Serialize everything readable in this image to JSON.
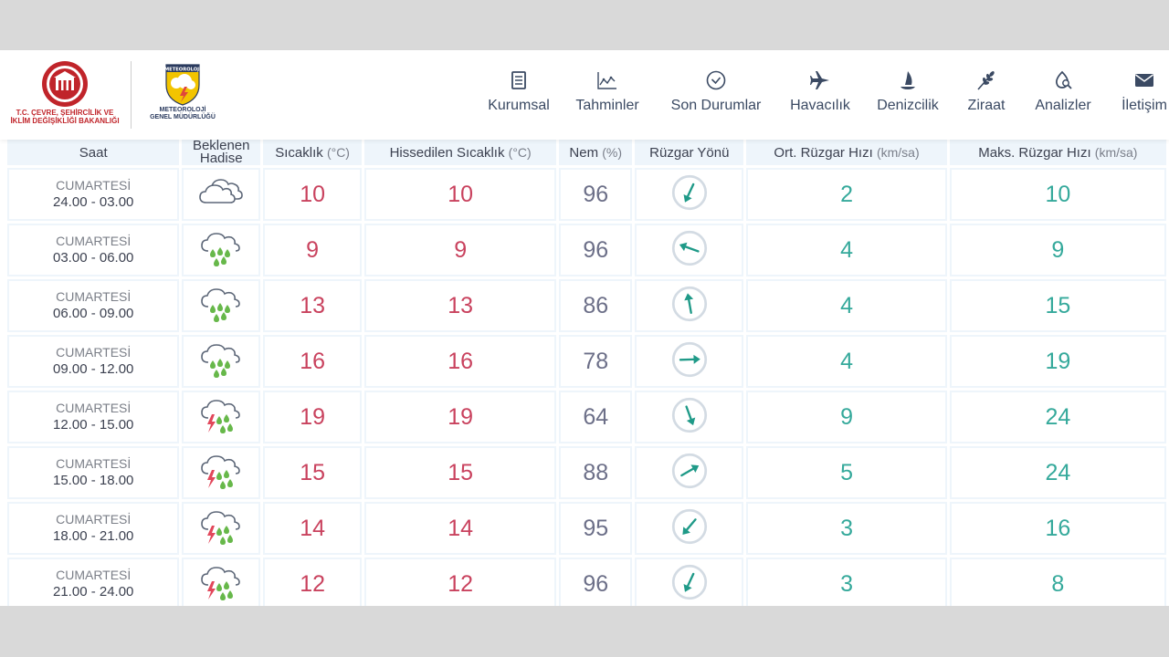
{
  "header": {
    "ministry_logo_line1": "T.C. ÇEVRE, ŞEHİRCİLİK VE",
    "ministry_logo_line2": "İKLİM DEĞİŞİKLİĞİ BAKANLIĞI",
    "mgm_logo_badge": "METEOROLOJİ",
    "mgm_logo_line1": "METEOROLOJİ",
    "mgm_logo_line2": "GENEL MÜDÜRLÜĞÜ"
  },
  "nav": [
    {
      "label": "Kurumsal",
      "icon": "document-icon"
    },
    {
      "label": "Tahminler",
      "icon": "chart-icon"
    },
    {
      "label": "Son Durumlar",
      "icon": "check-circle-icon"
    },
    {
      "label": "Havacılık",
      "icon": "airplane-icon"
    },
    {
      "label": "Denizcilik",
      "icon": "sailboat-icon"
    },
    {
      "label": "Ziraat",
      "icon": "wheat-icon"
    },
    {
      "label": "Analizler",
      "icon": "analysis-icon"
    },
    {
      "label": "İletişim",
      "icon": "envelope-icon"
    }
  ],
  "table": {
    "headers": {
      "time": "Saat",
      "event_line1": "Beklenen",
      "event_line2": "Hadise",
      "temp": "Sıcaklık",
      "temp_unit": "(°C)",
      "feels": "Hissedilen Sıcaklık",
      "feels_unit": "(°C)",
      "humidity": "Nem",
      "humidity_unit": "(%)",
      "wind_dir": "Rüzgar Yönü",
      "avg_wind": "Ort. Rüzgar Hızı",
      "avg_wind_unit": "(km/sa)",
      "max_wind": "Maks. Rüzgar Hızı",
      "max_wind_unit": "(km/sa)"
    },
    "rows": [
      {
        "day": "CUMARTESİ",
        "range": "24.00 - 03.00",
        "event": "cloudy-icon",
        "temp": "10",
        "feels": "10",
        "humidity": "96",
        "wind_dir_deg": 205,
        "avg_wind": "2",
        "max_wind": "10"
      },
      {
        "day": "CUMARTESİ",
        "range": "03.00 - 06.00",
        "event": "rain-icon",
        "temp": "9",
        "feels": "9",
        "humidity": "96",
        "wind_dir_deg": 290,
        "avg_wind": "4",
        "max_wind": "9"
      },
      {
        "day": "CUMARTESİ",
        "range": "06.00 - 09.00",
        "event": "rain-icon",
        "temp": "13",
        "feels": "13",
        "humidity": "86",
        "wind_dir_deg": 350,
        "avg_wind": "4",
        "max_wind": "15"
      },
      {
        "day": "CUMARTESİ",
        "range": "09.00 - 12.00",
        "event": "rain-icon",
        "temp": "16",
        "feels": "16",
        "humidity": "78",
        "wind_dir_deg": 88,
        "avg_wind": "4",
        "max_wind": "19"
      },
      {
        "day": "CUMARTESİ",
        "range": "12.00 - 15.00",
        "event": "thunderstorm-rain-icon",
        "temp": "19",
        "feels": "19",
        "humidity": "64",
        "wind_dir_deg": 160,
        "avg_wind": "9",
        "max_wind": "24"
      },
      {
        "day": "CUMARTESİ",
        "range": "15.00 - 18.00",
        "event": "thunderstorm-rain-icon",
        "temp": "15",
        "feels": "15",
        "humidity": "88",
        "wind_dir_deg": 60,
        "avg_wind": "5",
        "max_wind": "24"
      },
      {
        "day": "CUMARTESİ",
        "range": "18.00 - 21.00",
        "event": "thunderstorm-rain-icon",
        "temp": "14",
        "feels": "14",
        "humidity": "95",
        "wind_dir_deg": 220,
        "avg_wind": "3",
        "max_wind": "16"
      },
      {
        "day": "CUMARTESİ",
        "range": "21.00 - 24.00",
        "event": "thunderstorm-rain-icon",
        "temp": "12",
        "feels": "12",
        "humidity": "96",
        "wind_dir_deg": 205,
        "avg_wind": "3",
        "max_wind": "8"
      }
    ]
  },
  "colors": {
    "temp": "#c9425e",
    "humidity": "#6c6f88",
    "wind": "#35a99b",
    "nav_text": "#3b4a63",
    "header_cell": "#eef5fb"
  }
}
